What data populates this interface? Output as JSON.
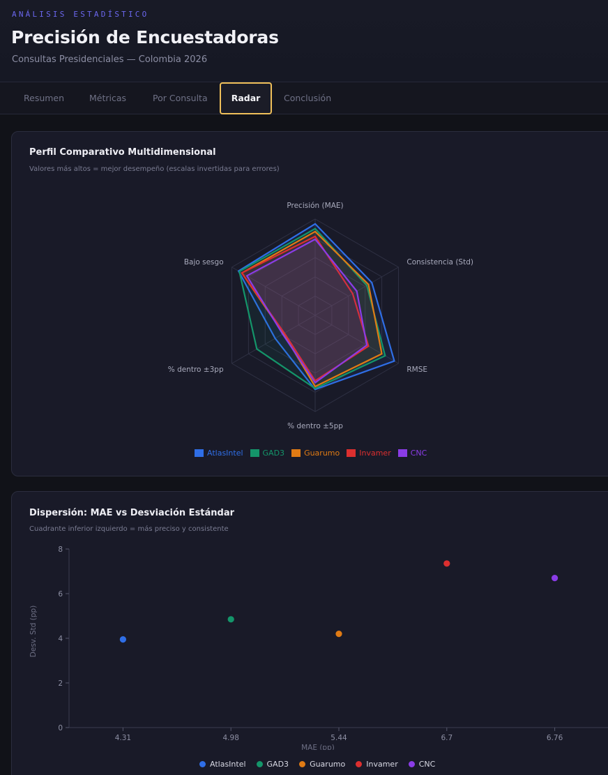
{
  "header": {
    "eyebrow": "ANÁLISIS ESTADÍSTICO",
    "title": "Precisión de Encuestadoras",
    "subtitle": "Consultas Presidenciales — Colombia 2026"
  },
  "tabs": [
    {
      "label": "Resumen"
    },
    {
      "label": "Métricas"
    },
    {
      "label": "Por Consulta"
    },
    {
      "label": "Radar",
      "active": true
    },
    {
      "label": "Conclusión"
    }
  ],
  "radar_card": {
    "title": "Perfil Comparativo Multidimensional",
    "subtitle": "Valores más altos = mejor desempeño (escalas invertidas para errores)"
  },
  "scatter_card": {
    "title": "Dispersión: MAE vs Desviación Estándar",
    "subtitle": "Cuadrante inferior izquierdo = más preciso y consistente"
  },
  "colors": {
    "AtlasIntel": "#2f6ee6",
    "GAD3": "#14956a",
    "Guarumo": "#e07b14",
    "Invamer": "#dc2f2f",
    "CNC": "#8a3ce6"
  },
  "chart_data": [
    {
      "type": "radar",
      "title": "",
      "axes": [
        "Precisión (MAE)",
        "Consistencia (Std)",
        "RMSE",
        "% dentro ±5pp",
        "% dentro ±3pp",
        "Bajo sesgo"
      ],
      "range": [
        0,
        100
      ],
      "series": [
        {
          "name": "AtlasIntel",
          "values": [
            95,
            68,
            95,
            77,
            48,
            92
          ]
        },
        {
          "name": "GAD3",
          "values": [
            90,
            62,
            84,
            76,
            70,
            91
          ]
        },
        {
          "name": "Guarumo",
          "values": [
            87,
            64,
            80,
            74,
            38,
            88
          ]
        },
        {
          "name": "Invamer",
          "values": [
            82,
            45,
            64,
            68,
            37,
            88
          ]
        },
        {
          "name": "CNC",
          "values": [
            79,
            50,
            62,
            70,
            39,
            82
          ]
        }
      ],
      "legend": "bottom"
    },
    {
      "type": "scatter",
      "xlabel": "MAE (pp)",
      "ylabel": "Desv. Std (pp)",
      "x_ticks": [
        "4.31",
        "4.98",
        "5.44",
        "6.7",
        "6.76"
      ],
      "ylim": [
        0,
        8
      ],
      "y_ticks": [
        0,
        2,
        4,
        6,
        8
      ],
      "points": [
        {
          "name": "AtlasIntel",
          "x": "4.31",
          "y": 3.95
        },
        {
          "name": "GAD3",
          "x": "4.98",
          "y": 4.85
        },
        {
          "name": "Guarumo",
          "x": "5.44",
          "y": 4.2
        },
        {
          "name": "Invamer",
          "x": "6.7",
          "y": 7.35
        },
        {
          "name": "CNC",
          "x": "6.76",
          "y": 6.7
        }
      ],
      "legend": "bottom"
    }
  ]
}
